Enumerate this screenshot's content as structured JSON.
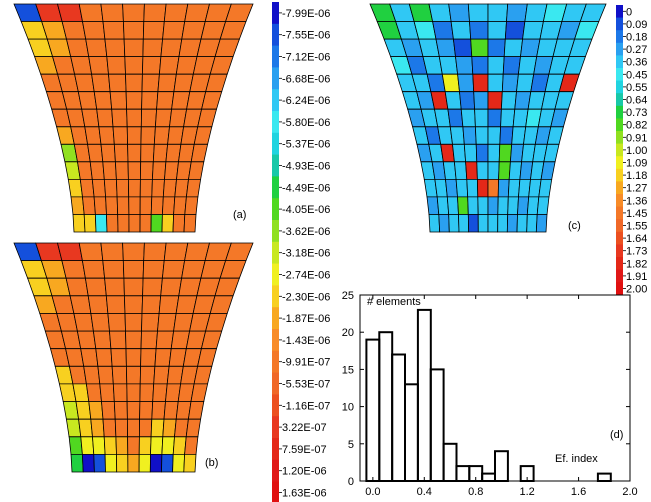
{
  "panels": {
    "a": {
      "label": "(a)"
    },
    "b": {
      "label": "(b)"
    },
    "c": {
      "label": "(c)"
    },
    "d": {
      "label": "(d)"
    }
  },
  "legend_left": {
    "labels": [
      "-7.99E-06",
      "-7.55E-06",
      "-7.12E-06",
      "-6.68E-06",
      "-6.24E-06",
      "-5.80E-06",
      "-5.37E-06",
      "-4.93E-06",
      "-4.49E-06",
      "-4.05E-06",
      "-3.62E-06",
      "-3.18E-06",
      "-2.74E-06",
      "-2.30E-06",
      "-1.87E-06",
      "-1.43E-06",
      "-9.91E-07",
      "-5.53E-07",
      "-1.16E-07",
      "3.22E-07",
      "7.59E-07",
      "1.20E-06",
      "1.63E-06"
    ]
  },
  "legend_right": {
    "labels": [
      "0",
      "0.09",
      "0.18",
      "0.27",
      "0.36",
      "0.45",
      "0.55",
      "0.64",
      "0.73",
      "0.82",
      "0.91",
      "1.00",
      "1.09",
      "1.18",
      "1.27",
      "1.36",
      "1.45",
      "1.55",
      "1.64",
      "1.73",
      "1.82",
      "1.91",
      "2.00"
    ]
  },
  "scale_colors": [
    "#1010c8",
    "#1450dc",
    "#1c78e8",
    "#2aa0f0",
    "#30c8f4",
    "#3ae8f0",
    "#20d4e0",
    "#18c8a8",
    "#20d040",
    "#50d820",
    "#90e020",
    "#c8e820",
    "#f0f020",
    "#f8d020",
    "#f8a820",
    "#f88c28",
    "#f47828",
    "#f06828",
    "#ec5020",
    "#e83820",
    "#e42818",
    "#e01818",
    "#e01010"
  ],
  "meshes": {
    "a": [
      [
        "#1450dc",
        "#e83820",
        "#e83820",
        "#f47828",
        "#f47828",
        "#f47828",
        "#f47828",
        "#f47828",
        "#f47828",
        "#f47828",
        "#f47828"
      ],
      [
        "#f8d020",
        "#f8a820",
        "#f47828",
        "#f47828",
        "#f47828",
        "#f47828",
        "#f47828",
        "#f47828",
        "#f47828",
        "#f47828",
        "#f47828"
      ],
      [
        "#f8d020",
        "#f8a820",
        "#f47828",
        "#f47828",
        "#f47828",
        "#f47828",
        "#f47828",
        "#f47828",
        "#f47828",
        "#f47828",
        "#f47828"
      ],
      [
        "#f8a820",
        "#f47828",
        "#f47828",
        "#f47828",
        "#f47828",
        "#f47828",
        "#f47828",
        "#f47828",
        "#f47828",
        "#f47828",
        "#f47828"
      ],
      [
        "#f47828",
        "#f47828",
        "#f47828",
        "#f47828",
        "#f47828",
        "#f47828",
        "#f47828",
        "#f47828",
        "#f47828",
        "#f47828",
        "#f47828"
      ],
      [
        "#f47828",
        "#f47828",
        "#f47828",
        "#f47828",
        "#f47828",
        "#f47828",
        "#f47828",
        "#f47828",
        "#f47828",
        "#f47828",
        "#f47828"
      ],
      [
        "#f47828",
        "#f47828",
        "#f47828",
        "#f47828",
        "#f47828",
        "#f47828",
        "#f47828",
        "#f47828",
        "#f47828",
        "#f47828",
        "#f47828"
      ],
      [
        "#f8a820",
        "#f47828",
        "#f47828",
        "#f47828",
        "#f47828",
        "#f47828",
        "#f47828",
        "#f47828",
        "#f47828",
        "#f47828",
        "#f47828"
      ],
      [
        "#90e020",
        "#f47828",
        "#f47828",
        "#f47828",
        "#f47828",
        "#f47828",
        "#f47828",
        "#f47828",
        "#f47828",
        "#f47828",
        "#f47828"
      ],
      [
        "#c8e820",
        "#f47828",
        "#f47828",
        "#f47828",
        "#f47828",
        "#f47828",
        "#f47828",
        "#f47828",
        "#f47828",
        "#f47828",
        "#f47828"
      ],
      [
        "#f8d020",
        "#f47828",
        "#f47828",
        "#f47828",
        "#f47828",
        "#f47828",
        "#f47828",
        "#f47828",
        "#f47828",
        "#f47828",
        "#f47828"
      ],
      [
        "#f8a820",
        "#f47828",
        "#f47828",
        "#f47828",
        "#f47828",
        "#f47828",
        "#f47828",
        "#f47828",
        "#f47828",
        "#f47828",
        "#f47828"
      ],
      [
        "#f8d020",
        "#f8d020",
        "#3ae8f0",
        "#f47828",
        "#f47828",
        "#f47828",
        "#f47828",
        "#50d820",
        "#f8d020",
        "#f47828",
        "#f47828"
      ]
    ],
    "b": [
      [
        "#1450dc",
        "#e83820",
        "#e83820",
        "#f47828",
        "#f47828",
        "#f47828",
        "#f47828",
        "#f47828",
        "#f47828",
        "#f47828",
        "#f47828"
      ],
      [
        "#f8d020",
        "#f8a820",
        "#f47828",
        "#f47828",
        "#f47828",
        "#f47828",
        "#f47828",
        "#f47828",
        "#f47828",
        "#f47828",
        "#f47828"
      ],
      [
        "#f8d020",
        "#f8a820",
        "#f47828",
        "#f47828",
        "#f47828",
        "#f47828",
        "#f47828",
        "#f47828",
        "#f47828",
        "#f47828",
        "#f47828"
      ],
      [
        "#f8a820",
        "#f47828",
        "#f47828",
        "#f47828",
        "#f47828",
        "#f47828",
        "#f47828",
        "#f47828",
        "#f47828",
        "#f47828",
        "#f47828"
      ],
      [
        "#f47828",
        "#f47828",
        "#f47828",
        "#f47828",
        "#f47828",
        "#f47828",
        "#f47828",
        "#f47828",
        "#f47828",
        "#f47828",
        "#f47828"
      ],
      [
        "#f47828",
        "#f47828",
        "#f47828",
        "#f47828",
        "#f47828",
        "#f47828",
        "#f47828",
        "#f47828",
        "#f47828",
        "#f47828",
        "#f47828"
      ],
      [
        "#f47828",
        "#f47828",
        "#f47828",
        "#f47828",
        "#f47828",
        "#f47828",
        "#f47828",
        "#f47828",
        "#f47828",
        "#f47828",
        "#f47828"
      ],
      [
        "#f8d020",
        "#f47828",
        "#f47828",
        "#f47828",
        "#f47828",
        "#f47828",
        "#f47828",
        "#f47828",
        "#f47828",
        "#f47828",
        "#f47828"
      ],
      [
        "#f8d020",
        "#f8d020",
        "#f47828",
        "#f47828",
        "#f47828",
        "#f47828",
        "#f47828",
        "#f47828",
        "#f47828",
        "#f47828",
        "#f47828"
      ],
      [
        "#c8e820",
        "#f8d020",
        "#f8a820",
        "#f47828",
        "#f47828",
        "#f47828",
        "#f47828",
        "#f47828",
        "#f47828",
        "#f47828",
        "#f47828"
      ],
      [
        "#c8e820",
        "#f8d020",
        "#f8a820",
        "#f47828",
        "#f47828",
        "#f47828",
        "#f47828",
        "#f8d020",
        "#f8a820",
        "#f47828",
        "#f47828"
      ],
      [
        "#50d820",
        "#f0f020",
        "#f0f020",
        "#f8d020",
        "#f8a820",
        "#f47828",
        "#f8d020",
        "#f0f020",
        "#f0f020",
        "#f8d020",
        "#f47828"
      ],
      [
        "#20d040",
        "#1010c8",
        "#1450dc",
        "#f0f020",
        "#f8d020",
        "#f8a820",
        "#f0f020",
        "#1010c8",
        "#1450dc",
        "#f0f020",
        "#f8d020"
      ]
    ],
    "c": [
      [
        "#20d040",
        "#30c8f4",
        "#20d040",
        "#30c8f4",
        "#2aa0f0",
        "#30c8f4",
        "#30c8f4",
        "#2aa0f0",
        "#30c8f4",
        "#3ae8f0",
        "#30c8f4",
        "#30c8f4"
      ],
      [
        "#20d040",
        "#30c8f4",
        "#3ae8f0",
        "#1c78e8",
        "#30c8f4",
        "#1c78e8",
        "#30c8f4",
        "#1450dc",
        "#30c8f4",
        "#30c8f4",
        "#2aa0f0",
        "#3ae8f0"
      ],
      [
        "#30c8f4",
        "#2aa0f0",
        "#30c8f4",
        "#2aa0f0",
        "#1450dc",
        "#50d820",
        "#1c78e8",
        "#30c8f4",
        "#2aa0f0",
        "#30c8f4",
        "#30c8f4",
        "#30c8f4"
      ],
      [
        "#3ae8f0",
        "#1c78e8",
        "#30c8f4",
        "#30c8f4",
        "#2aa0f0",
        "#1c78e8",
        "#30c8f4",
        "#1c78e8",
        "#30c8f4",
        "#2aa0f0",
        "#30c8f4",
        "#30c8f4"
      ],
      [
        "#30c8f4",
        "#30c8f4",
        "#1c78e8",
        "#f0f020",
        "#2aa0f0",
        "#e42818",
        "#30c8f4",
        "#2aa0f0",
        "#30c8f4",
        "#1c78e8",
        "#30c8f4",
        "#e42818"
      ],
      [
        "#30c8f4",
        "#2aa0f0",
        "#e42818",
        "#30c8f4",
        "#1c78e8",
        "#2aa0f0",
        "#e42818",
        "#30c8f4",
        "#2aa0f0",
        "#30c8f4",
        "#30c8f4",
        "#30c8f4"
      ],
      [
        "#2aa0f0",
        "#30c8f4",
        "#30c8f4",
        "#1c78e8",
        "#30c8f4",
        "#30c8f4",
        "#1c78e8",
        "#30c8f4",
        "#30c8f4",
        "#3ae8f0",
        "#30c8f4",
        "#2aa0f0"
      ],
      [
        "#30c8f4",
        "#1c78e8",
        "#30c8f4",
        "#30c8f4",
        "#2aa0f0",
        "#30c8f4",
        "#30c8f4",
        "#1c78e8",
        "#30c8f4",
        "#30c8f4",
        "#2aa0f0",
        "#30c8f4"
      ],
      [
        "#2aa0f0",
        "#30c8f4",
        "#e42818",
        "#30c8f4",
        "#30c8f4",
        "#1c78e8",
        "#30c8f4",
        "#50d820",
        "#2aa0f0",
        "#30c8f4",
        "#30c8f4",
        "#30c8f4"
      ],
      [
        "#30c8f4",
        "#2aa0f0",
        "#30c8f4",
        "#30c8f4",
        "#e42818",
        "#30c8f4",
        "#30c8f4",
        "#50d820",
        "#30c8f4",
        "#2aa0f0",
        "#30c8f4",
        "#2aa0f0"
      ],
      [
        "#30c8f4",
        "#30c8f4",
        "#2aa0f0",
        "#30c8f4",
        "#30c8f4",
        "#e42818",
        "#f47828",
        "#2aa0f0",
        "#30c8f4",
        "#30c8f4",
        "#30c8f4",
        "#30c8f4"
      ],
      [
        "#2aa0f0",
        "#30c8f4",
        "#30c8f4",
        "#50d820",
        "#30c8f4",
        "#30c8f4",
        "#2aa0f0",
        "#30c8f4",
        "#30c8f4",
        "#2aa0f0",
        "#30c8f4",
        "#30c8f4"
      ],
      [
        "#30c8f4",
        "#2aa0f0",
        "#30c8f4",
        "#30c8f4",
        "#1450dc",
        "#30c8f4",
        "#30c8f4",
        "#30c8f4",
        "#2aa0f0",
        "#30c8f4",
        "#30c8f4",
        "#2aa0f0"
      ]
    ]
  },
  "chart_data": {
    "type": "bar",
    "annotations": [
      "# elements",
      "Ef. index"
    ],
    "xlim": [
      -0.1,
      2.0
    ],
    "ylim": [
      0,
      25
    ],
    "x_ticks": [
      0.0,
      0.4,
      0.8,
      1.2,
      1.6,
      2.0
    ],
    "x_tick_labels": [
      "0.0",
      "0.4",
      "0.8",
      "1.2",
      "1.6",
      "2.0"
    ],
    "y_ticks": [
      0,
      5,
      10,
      15,
      20,
      25
    ],
    "y_tick_labels": [
      "0",
      "5",
      "10",
      "15",
      "20",
      "25"
    ],
    "bin_width": 0.1,
    "x": [
      0.0,
      0.1,
      0.2,
      0.3,
      0.4,
      0.5,
      0.6,
      0.7,
      0.8,
      0.9,
      1.0,
      1.1,
      1.2,
      1.3,
      1.4,
      1.5,
      1.6,
      1.7,
      1.8,
      1.9
    ],
    "values": [
      19,
      20,
      17,
      13,
      23,
      15,
      5,
      2,
      2,
      1,
      4,
      0,
      2,
      0,
      0,
      0,
      0,
      0,
      1,
      0
    ],
    "grid": false,
    "legend": false
  }
}
